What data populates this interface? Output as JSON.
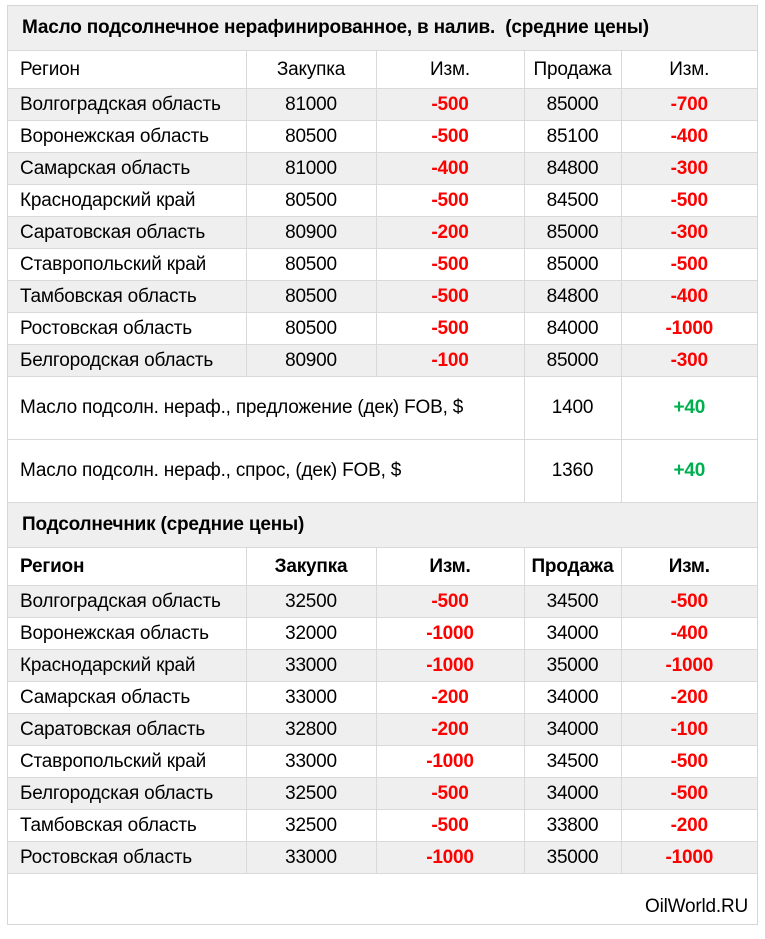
{
  "footer": {
    "brand": "OilWorld.RU"
  },
  "colors": {
    "negative_change": "#ff0000",
    "positive_change": "#00b050",
    "band_background": "#efefef",
    "grid_border": "#d9d9d9"
  },
  "chart_data": [
    {
      "type": "table",
      "title": "Масло подсолнечное нерафинированное, в налив.  (средние цены)",
      "columns": [
        "Регион",
        "Закупка",
        "Изм.",
        "Продажа",
        "Изм."
      ],
      "rows": [
        [
          "Волгоградская область",
          81000,
          -500,
          85000,
          -700
        ],
        [
          "Воронежская область",
          80500,
          -500,
          85100,
          -400
        ],
        [
          "Самарская область",
          81000,
          -400,
          84800,
          -300
        ],
        [
          "Краснодарский край",
          80500,
          -500,
          84500,
          -500
        ],
        [
          "Саратовская область",
          80900,
          -200,
          85000,
          -300
        ],
        [
          "Ставропольский край",
          80500,
          -500,
          85000,
          -500
        ],
        [
          "Тамбовская область",
          80500,
          -500,
          84800,
          -400
        ],
        [
          "Ростовская область",
          80500,
          -500,
          84000,
          -1000
        ],
        [
          "Белгородская область",
          80900,
          -100,
          85000,
          -300
        ]
      ],
      "summary_rows": [
        [
          "Масло подсолн. нераф., предложение (дек) FOB, $",
          1400,
          40
        ],
        [
          "Масло подсолн. нераф., спрос, (дек) FOB, $",
          1360,
          40
        ]
      ]
    },
    {
      "type": "table",
      "title": "Подсолнечник (средние цены)",
      "columns": [
        "Регион",
        "Закупка",
        "Изм.",
        "Продажа",
        "Изм."
      ],
      "rows": [
        [
          "Волгоградская область",
          32500,
          -500,
          34500,
          -500
        ],
        [
          "Воронежская область",
          32000,
          -1000,
          34000,
          -400
        ],
        [
          "Краснодарский край",
          33000,
          -1000,
          35000,
          -1000
        ],
        [
          "Самарская область",
          33000,
          -200,
          34000,
          -200
        ],
        [
          "Саратовская область",
          32800,
          -200,
          34000,
          -100
        ],
        [
          "Ставропольский край",
          33000,
          -1000,
          34500,
          -500
        ],
        [
          "Белгородская область",
          32500,
          -500,
          34000,
          -500
        ],
        [
          "Тамбовская область",
          32500,
          -500,
          33800,
          -200
        ],
        [
          "Ростовская область",
          33000,
          -1000,
          35000,
          -1000
        ]
      ],
      "summary_rows": []
    }
  ]
}
